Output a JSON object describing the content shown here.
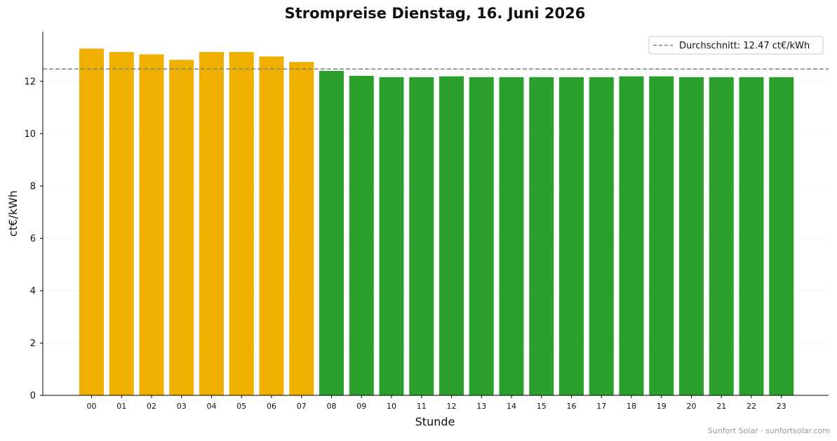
{
  "chart_data": {
    "type": "bar",
    "title": "Strompreise Dienstag, 16. Juni 2026",
    "xlabel": "Stunde",
    "ylabel": "ct€/kWh",
    "categories": [
      "00",
      "01",
      "02",
      "03",
      "04",
      "05",
      "06",
      "07",
      "08",
      "09",
      "10",
      "11",
      "12",
      "13",
      "14",
      "15",
      "16",
      "17",
      "18",
      "19",
      "20",
      "21",
      "22",
      "23"
    ],
    "values": [
      13.25,
      13.12,
      13.03,
      12.82,
      13.12,
      13.12,
      12.95,
      12.74,
      12.4,
      12.21,
      12.16,
      12.16,
      12.19,
      12.16,
      12.16,
      12.16,
      12.16,
      12.16,
      12.19,
      12.19,
      12.16,
      12.16,
      12.16,
      12.16
    ],
    "ylim": [
      0,
      13.9
    ],
    "yticks": [
      0,
      2,
      4,
      6,
      8,
      10,
      12
    ],
    "grid": "horizontal dotted",
    "average": {
      "value": 12.47,
      "label": "Durchschnitt: 12.47 ct€/kWh"
    },
    "legend_position": "top-right",
    "colors": {
      "above_average": "#F0B000",
      "below_average": "#2CA02C",
      "average_line": "#808080"
    }
  },
  "footer": "Sunfort Solar · sunfortsolar.com"
}
